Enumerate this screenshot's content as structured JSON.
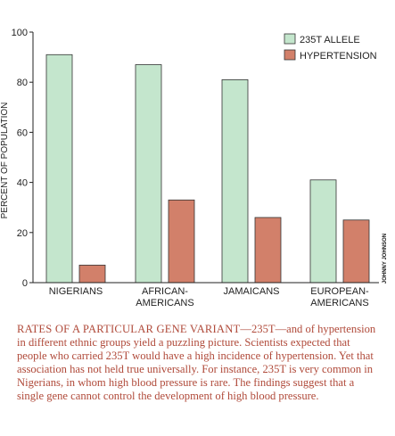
{
  "chart_data": {
    "type": "bar",
    "categories": [
      [
        "NIGERIANS"
      ],
      [
        "AFRICAN-",
        "AMERICANS"
      ],
      [
        "JAMAICANS"
      ],
      [
        "EUROPEAN-",
        "AMERICANS"
      ]
    ],
    "series": [
      {
        "name": "235T ALLELE",
        "color": "#c4e6cd",
        "values": [
          91,
          87,
          81,
          41
        ]
      },
      {
        "name": "HYPERTENSION",
        "color": "#d2806a",
        "values": [
          7,
          33,
          26,
          25
        ]
      }
    ],
    "ylabel": "PERCENT OF POPULATION",
    "ylim": [
      0,
      100
    ],
    "yticks": [
      0,
      20,
      40,
      60,
      80,
      100
    ],
    "legend_position": "top-right",
    "grid": false,
    "credit": "JOHNNY JOHNSON"
  },
  "caption": {
    "title": "Rates of a particular gene variant",
    "text": "—235T—and of hypertension in different ethnic groups yield a puzzling picture. Scientists expected that people who carried 235T would have a high incidence of hypertension. Yet that association has not held true universally. For instance, 235T is very common in Nigerians, in whom high blood pressure is rare. The findings suggest that a single gene cannot control the development of high blood pressure."
  }
}
